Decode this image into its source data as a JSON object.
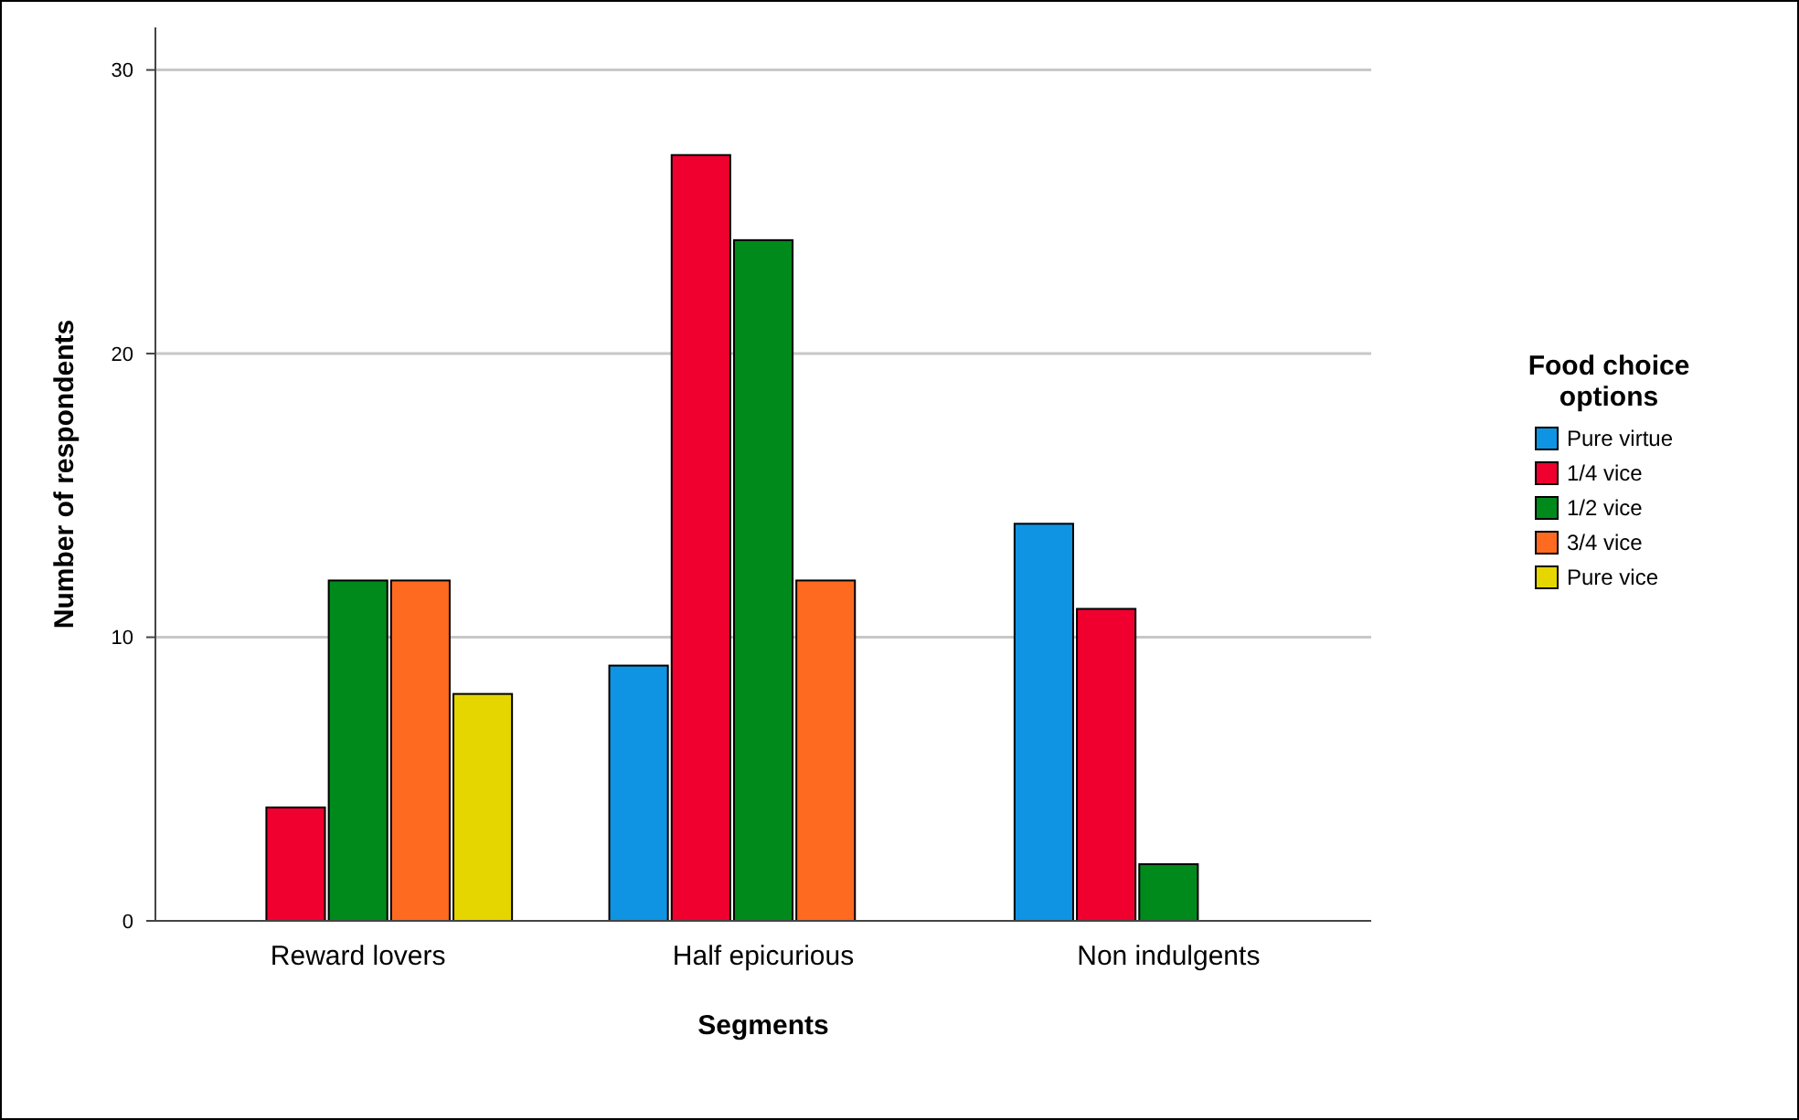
{
  "chart_data": {
    "type": "bar",
    "xlabel": "Segments",
    "ylabel": "Number of respondents",
    "legend_title": "Food choice options",
    "categories": [
      "Reward lovers",
      "Half epicurious",
      "Non indulgents"
    ],
    "series": [
      {
        "name": "Pure virtue",
        "color": "#0f94e3",
        "values": [
          null,
          9,
          14
        ]
      },
      {
        "name": "1/4 vice",
        "color": "#f0002f",
        "values": [
          4,
          27,
          11
        ]
      },
      {
        "name": "1/2 vice",
        "color": "#008a1c",
        "values": [
          12,
          24,
          2
        ]
      },
      {
        "name": "3/4 vice",
        "color": "#ff6a21",
        "values": [
          12,
          12,
          null
        ]
      },
      {
        "name": "Pure vice",
        "color": "#e6d600",
        "values": [
          8,
          null,
          null
        ]
      }
    ],
    "ylim": [
      0,
      31.5
    ],
    "yticks": [
      0,
      10,
      20,
      30
    ],
    "grid": "y",
    "legend": "right"
  }
}
